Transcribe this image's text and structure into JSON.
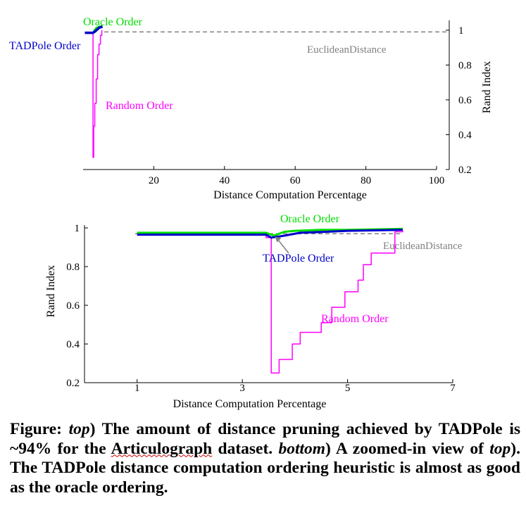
{
  "chart_data": [
    {
      "type": "line",
      "panel": "top",
      "xlabel": "Distance Computation Percentage",
      "ylabel": "Rand Index",
      "xlim": [
        0,
        100
      ],
      "ylim": [
        0.2,
        1.04
      ],
      "x_ticks": [
        "20",
        "40",
        "60",
        "80",
        "100"
      ],
      "x_tick_values": [
        20,
        40,
        60,
        80,
        100
      ],
      "y_ticks": [
        "0.2",
        "0.4",
        "0.6",
        "0.8",
        "1"
      ],
      "y_tick_values": [
        0.2,
        0.4,
        0.6,
        0.8,
        1
      ],
      "y_axis_side": "right",
      "grid": false,
      "baseline": {
        "label": "EuclideanDistance",
        "value": 0.99,
        "color": "#808080"
      },
      "series": [
        {
          "name": "Random Order",
          "color": "#ff00ff",
          "width": 1.5,
          "points": [
            [
              2.8,
              0.98
            ],
            [
              2.8,
              0.27
            ],
            [
              3.0,
              0.27
            ],
            [
              3.0,
              0.45
            ],
            [
              3.3,
              0.45
            ],
            [
              3.3,
              0.58
            ],
            [
              3.7,
              0.58
            ],
            [
              3.7,
              0.72
            ],
            [
              4.1,
              0.72
            ],
            [
              4.1,
              0.86
            ],
            [
              4.5,
              0.86
            ],
            [
              4.5,
              0.92
            ],
            [
              4.9,
              0.92
            ],
            [
              4.9,
              0.97
            ],
            [
              5.3,
              0.97
            ],
            [
              5.3,
              1.0
            ]
          ]
        },
        {
          "name": "Oracle Order",
          "color": "#00dd00",
          "width": 2.5,
          "points": [
            [
              0.5,
              0.985
            ],
            [
              2.8,
              0.985
            ],
            [
              3.2,
              1.0
            ],
            [
              3.8,
              1.015
            ],
            [
              4.6,
              1.02
            ],
            [
              5.5,
              1.025
            ]
          ]
        },
        {
          "name": "TADPole Order",
          "color": "#0000cc",
          "width": 3.5,
          "points": [
            [
              0.5,
              0.985
            ],
            [
              2.8,
              0.985
            ],
            [
              3.2,
              0.99
            ],
            [
              3.8,
              1.0
            ],
            [
              4.6,
              1.015
            ],
            [
              5.5,
              1.02
            ]
          ]
        }
      ]
    },
    {
      "type": "line",
      "panel": "bottom",
      "xlabel": "Distance Computation Percentage",
      "ylabel": "Rand Index",
      "xlim": [
        0,
        7
      ],
      "ylim": [
        0.2,
        1.0
      ],
      "x_ticks": [
        "1",
        "3",
        "5",
        "7"
      ],
      "x_tick_values": [
        1,
        3,
        5,
        7
      ],
      "y_ticks": [
        "0.2",
        "0.4",
        "0.6",
        "0.8",
        "1"
      ],
      "y_tick_values": [
        0.2,
        0.4,
        0.6,
        0.8,
        1
      ],
      "y_axis_side": "left",
      "grid": false,
      "baseline": {
        "label": "EuclideanDistance",
        "value": 0.97,
        "color": "#808080"
      },
      "series": [
        {
          "name": "Random Order",
          "color": "#ff00ff",
          "width": 1.5,
          "points": [
            [
              1,
              0.97
            ],
            [
              3.45,
              0.97
            ],
            [
              3.45,
              0.95
            ],
            [
              3.55,
              0.95
            ],
            [
              3.55,
              0.25
            ],
            [
              3.7,
              0.25
            ],
            [
              3.7,
              0.32
            ],
            [
              3.95,
              0.32
            ],
            [
              3.95,
              0.4
            ],
            [
              4.1,
              0.4
            ],
            [
              4.1,
              0.46
            ],
            [
              4.5,
              0.46
            ],
            [
              4.5,
              0.51
            ],
            [
              4.7,
              0.51
            ],
            [
              4.7,
              0.59
            ],
            [
              4.95,
              0.59
            ],
            [
              4.95,
              0.67
            ],
            [
              5.2,
              0.67
            ],
            [
              5.2,
              0.73
            ],
            [
              5.3,
              0.73
            ],
            [
              5.3,
              0.81
            ],
            [
              5.45,
              0.81
            ],
            [
              5.45,
              0.87
            ],
            [
              5.9,
              0.87
            ],
            [
              5.9,
              0.98
            ],
            [
              6.05,
              0.98
            ],
            [
              6.05,
              0.985
            ]
          ]
        },
        {
          "name": "Oracle Order",
          "color": "#00dd00",
          "width": 3,
          "points": [
            [
              1,
              0.975
            ],
            [
              3.45,
              0.975
            ],
            [
              3.6,
              0.96
            ],
            [
              3.8,
              0.98
            ],
            [
              4.0,
              0.985
            ],
            [
              4.5,
              0.99
            ],
            [
              5.0,
              0.99
            ],
            [
              6.05,
              0.995
            ]
          ]
        },
        {
          "name": "TADPole Order",
          "color": "#0000cc",
          "width": 3,
          "points": [
            [
              1,
              0.965
            ],
            [
              3.45,
              0.965
            ],
            [
              3.55,
              0.95
            ],
            [
              3.8,
              0.96
            ],
            [
              4.1,
              0.975
            ],
            [
              4.6,
              0.98
            ],
            [
              5.0,
              0.985
            ],
            [
              6.05,
              0.99
            ]
          ]
        }
      ]
    }
  ],
  "caption": {
    "label": "Figure:",
    "part1": "top",
    "part2": ") The amount of distance pruning achieved by TADPole is ~94% for the ",
    "part3": "Articulograph",
    "part4": " dataset. ",
    "part5": "bottom",
    "part6": ") A zoomed-in view of ",
    "part7": "top",
    "part8": "). The TADPole distance computation ordering heuristic is almost as good as the oracle ordering."
  }
}
